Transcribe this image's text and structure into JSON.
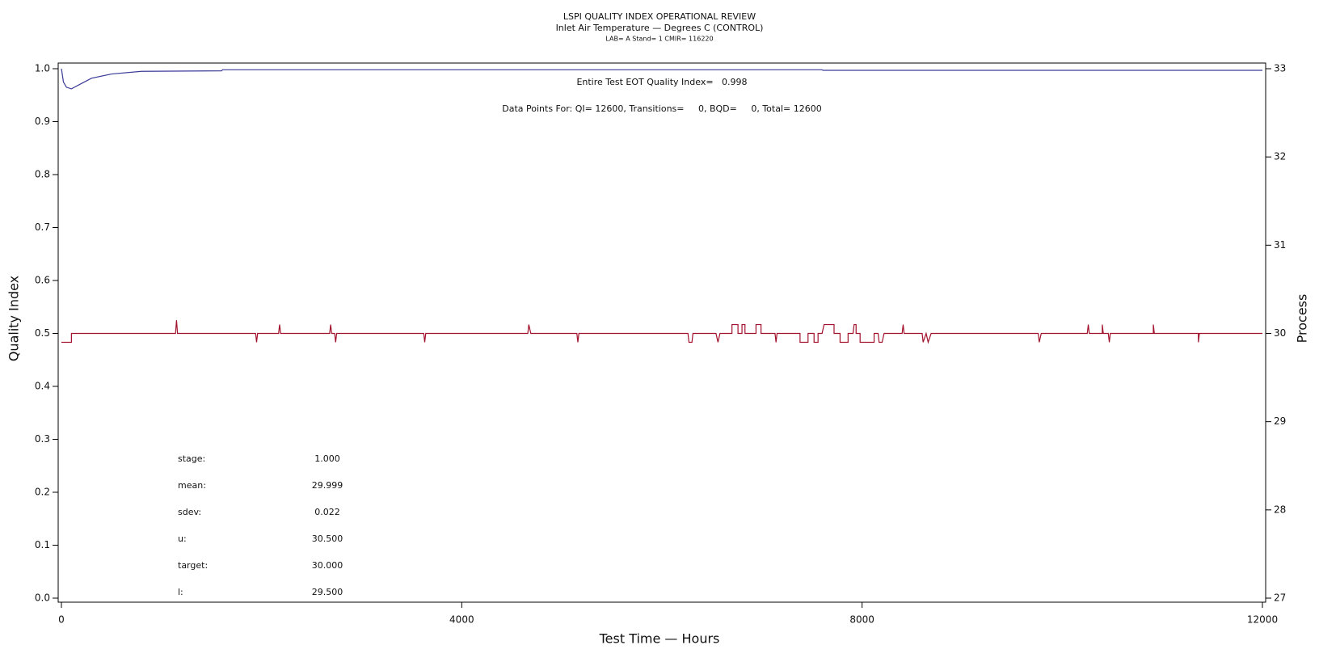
{
  "chart_data": {
    "type": "line",
    "title": "LSPI QUALITY INDEX OPERATIONAL REVIEW",
    "subtitle": "Inlet Air Temperature — Degrees C (CONTROL)",
    "subtitle2": "LAB= A Stand= 1 CMIR= 116220",
    "x_label": "Test Time — Hours",
    "y_label": "Quality Index",
    "y2_label": "Process",
    "xlim": [
      0,
      12000
    ],
    "xticks": [
      0,
      4000,
      8000,
      12000
    ],
    "ylim": [
      0,
      1
    ],
    "yticks": [
      {
        "value": 0,
        "label": "0.0"
      },
      0.1,
      0.2,
      0.3,
      0.4,
      0.5,
      0.6,
      0.7,
      0.8,
      0.9,
      {
        "value": 1,
        "label": "1.0"
      }
    ],
    "y2lim": [
      27,
      33
    ],
    "y2ticks": [
      27,
      28,
      29,
      30,
      31,
      32,
      33
    ],
    "annotations": [
      "Entire Test EOT Quality Index=   0.998",
      "Data Points For: QI= 12600, Transitions=     0, BQD=     0, Total= 12600"
    ],
    "stats": [
      [
        "stage:",
        "1.000"
      ],
      [
        "mean:",
        "29.999"
      ],
      [
        "sdev:",
        "0.022"
      ],
      [
        "u:",
        "30.500"
      ],
      [
        "target:",
        "30.000"
      ],
      [
        "l:",
        "29.500"
      ]
    ],
    "series": [
      {
        "color": "#3a3a98",
        "x": [
          0,
          20,
          50,
          100,
          200,
          300,
          500,
          800,
          1600,
          1610,
          7600,
          7610,
          12000
        ],
        "values": [
          1.0,
          0.975,
          0.965,
          0.962,
          0.972,
          0.982,
          0.99,
          0.995,
          0.996,
          0.998,
          0.998,
          0.997,
          0.997
        ]
      },
      {
        "color": "#a3122c",
        "axis": "y2",
        "x": [
          0,
          100,
          100,
          1140,
          1150,
          1160,
          1940,
          1950,
          1960,
          2170,
          2180,
          2190,
          2680,
          2690,
          2700,
          2730,
          2740,
          2750,
          3620,
          3630,
          3640,
          4660,
          4670,
          4690,
          5150,
          5160,
          5170,
          6260,
          6270,
          6300,
          6310,
          6540,
          6560,
          6580,
          6700,
          6700,
          6760,
          6760,
          6800,
          6800,
          6830,
          6830,
          6940,
          6940,
          6990,
          6990,
          7130,
          7140,
          7150,
          7380,
          7380,
          7460,
          7460,
          7520,
          7520,
          7560,
          7560,
          7600,
          7620,
          7720,
          7720,
          7780,
          7780,
          7860,
          7860,
          7910,
          7920,
          7940,
          7940,
          7980,
          7980,
          8120,
          8120,
          8160,
          8170,
          8200,
          8220,
          8400,
          8410,
          8420,
          8600,
          8610,
          8640,
          8660,
          8690,
          9760,
          9770,
          9790,
          10250,
          10260,
          10270,
          10400,
          10400,
          10410,
          10460,
          10470,
          10480,
          10910,
          10910,
          10920,
          11360,
          11360,
          11370,
          12000
        ],
        "values": [
          29.9,
          29.9,
          30,
          30,
          30.15,
          30,
          30,
          29.9,
          30,
          30,
          30.1,
          30,
          30,
          30.1,
          30,
          30,
          29.9,
          30,
          30,
          29.9,
          30,
          30,
          30.1,
          30,
          30,
          29.9,
          30,
          30,
          29.9,
          29.9,
          30,
          30,
          29.9,
          30,
          30,
          30.1,
          30.1,
          30,
          30,
          30.1,
          30.1,
          30,
          30,
          30.1,
          30.1,
          30,
          30,
          29.9,
          30,
          30,
          29.9,
          29.9,
          30,
          30,
          29.9,
          29.9,
          30,
          30,
          30.1,
          30.1,
          30,
          30,
          29.9,
          29.9,
          30,
          30,
          30.1,
          30.1,
          30,
          30,
          29.9,
          29.9,
          30,
          30,
          29.9,
          29.9,
          30,
          30,
          30.1,
          30,
          30,
          29.9,
          30,
          29.9,
          30,
          30,
          29.9,
          30,
          30,
          30.1,
          30,
          30,
          30.1,
          30,
          30,
          29.9,
          30,
          30,
          30.1,
          30,
          30,
          29.9,
          30,
          30
        ]
      }
    ]
  }
}
